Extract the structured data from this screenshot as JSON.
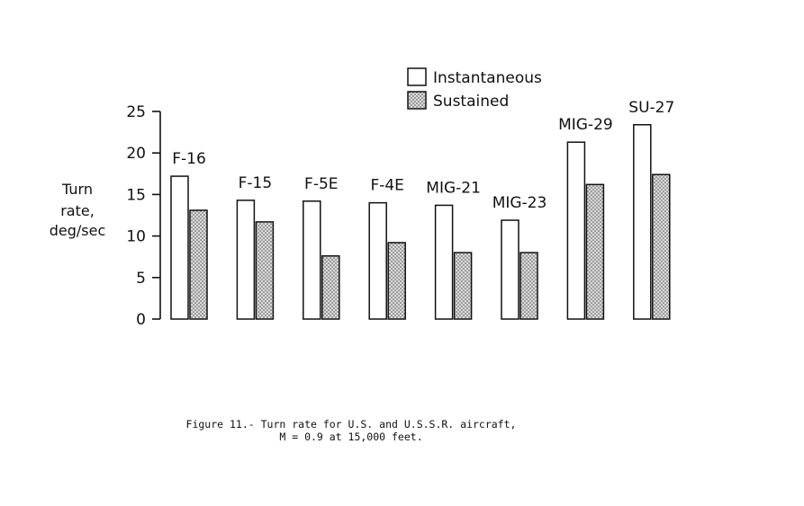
{
  "chart_data": {
    "type": "bar",
    "categories": [
      "F-16",
      "F-15",
      "F-5E",
      "F-4E",
      "MIG-21",
      "MIG-23",
      "MIG-29",
      "SU-27"
    ],
    "series": [
      {
        "name": "Instantaneous",
        "values": [
          17.2,
          14.3,
          14.2,
          14.0,
          13.7,
          11.9,
          21.3,
          23.4
        ]
      },
      {
        "name": "Sustained",
        "values": [
          13.1,
          11.7,
          7.6,
          9.2,
          8.0,
          8.0,
          16.2,
          17.4
        ]
      }
    ],
    "ylabel_lines": [
      "Turn",
      "rate,",
      "deg/sec"
    ],
    "yticks": [
      0,
      5,
      10,
      15,
      20,
      25
    ],
    "ylim": [
      0,
      25
    ],
    "legend_position": "top-right",
    "caption_lines": [
      "Figure 11.- Turn rate for U.S. and U.S.S.R. aircraft,",
      "M = 0.9 at 15,000 feet."
    ],
    "colors": {
      "instantaneous": "#ffffff",
      "sustained": "#c8c8c8",
      "stroke": "#111111"
    }
  }
}
